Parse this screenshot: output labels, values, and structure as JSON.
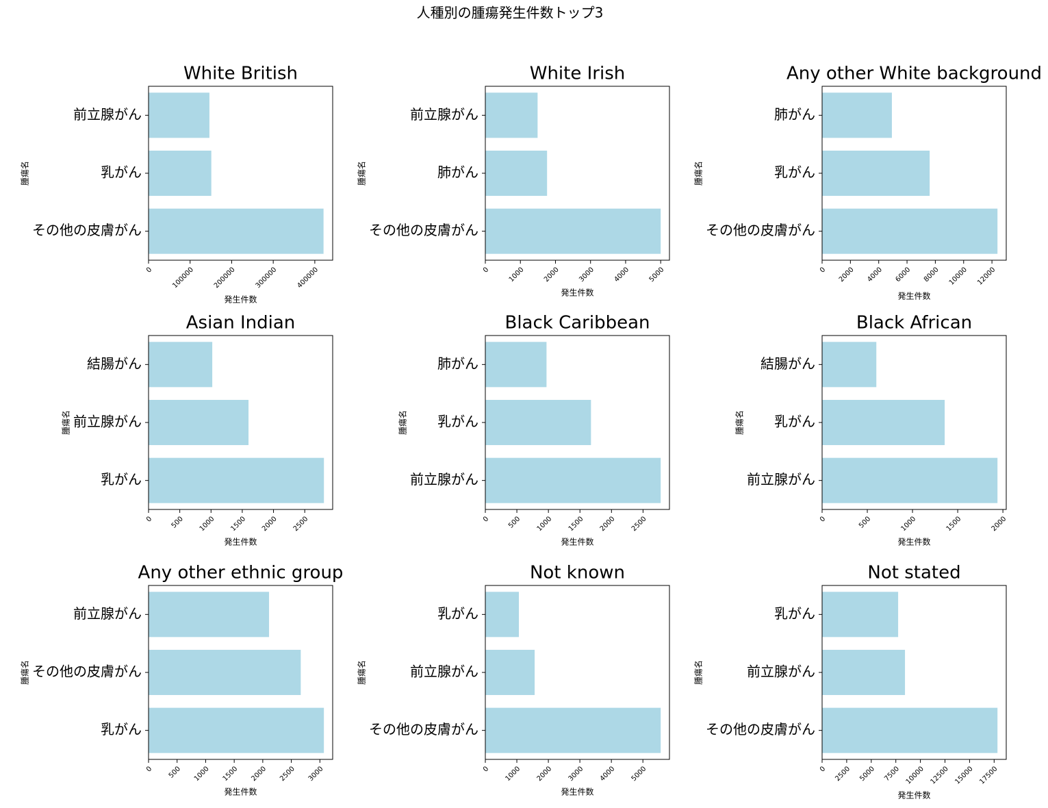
{
  "title": "人種別の腫瘍発生件数トップ3",
  "chart_data": [
    {
      "type": "bar",
      "orientation": "horizontal",
      "title": "White British",
      "xlabel": "発生件数",
      "ylabel": "腫瘍名",
      "color": "#add8e6",
      "categories": [
        "前立腺がん",
        "乳がん",
        "その他の皮膚がん"
      ],
      "values": [
        146500,
        151000,
        421000
      ],
      "xlim": [
        0,
        443000
      ],
      "xticks": [
        0,
        100000,
        200000,
        300000,
        400000
      ]
    },
    {
      "type": "bar",
      "orientation": "horizontal",
      "title": "White Irish",
      "xlabel": "発生件数",
      "ylabel": "腫瘍名",
      "color": "#add8e6",
      "categories": [
        "前立腺がん",
        "肺がん",
        "その他の皮膚がん"
      ],
      "values": [
        1490,
        1760,
        5000
      ],
      "xlim": [
        0,
        5250
      ],
      "xticks": [
        0,
        1000,
        2000,
        3000,
        4000,
        5000
      ]
    },
    {
      "type": "bar",
      "orientation": "horizontal",
      "title": "Any other White background",
      "xlabel": "発生件数",
      "ylabel": "腫瘍名",
      "color": "#add8e6",
      "categories": [
        "肺がん",
        "乳がん",
        "その他の皮膚がん"
      ],
      "values": [
        4930,
        7600,
        12390
      ],
      "xlim": [
        0,
        13010
      ],
      "xticks": [
        0,
        2000,
        4000,
        6000,
        8000,
        10000,
        12000
      ]
    },
    {
      "type": "bar",
      "orientation": "horizontal",
      "title": "Asian Indian",
      "xlabel": "発生件数",
      "ylabel": "腫瘍名",
      "color": "#add8e6",
      "categories": [
        "結腸がん",
        "前立腺がん",
        "乳がん"
      ],
      "values": [
        1020,
        1600,
        2807
      ],
      "xlim": [
        0,
        2947
      ],
      "xticks": [
        0,
        500,
        1000,
        1500,
        2000,
        2500
      ]
    },
    {
      "type": "bar",
      "orientation": "horizontal",
      "title": "Black Caribbean",
      "xlabel": "発生件数",
      "ylabel": "腫瘍名",
      "color": "#add8e6",
      "categories": [
        "肺がん",
        "乳がん",
        "前立腺がん"
      ],
      "values": [
        970,
        1675,
        2780
      ],
      "xlim": [
        0,
        2919
      ],
      "xticks": [
        0,
        500,
        1000,
        1500,
        2000,
        2500
      ]
    },
    {
      "type": "bar",
      "orientation": "horizontal",
      "title": "Black African",
      "xlabel": "発生件数",
      "ylabel": "腫瘍名",
      "color": "#add8e6",
      "categories": [
        "結腸がん",
        "乳がん",
        "前立腺がん"
      ],
      "values": [
        600,
        1356,
        1940
      ],
      "xlim": [
        0,
        2037
      ],
      "xticks": [
        0,
        500,
        1000,
        1500,
        2000
      ]
    },
    {
      "type": "bar",
      "orientation": "horizontal",
      "title": "Any other ethnic group",
      "xlabel": "発生件数",
      "ylabel": "腫瘍名",
      "color": "#add8e6",
      "categories": [
        "前立腺がん",
        "その他の皮膚がん",
        "乳がん"
      ],
      "values": [
        2110,
        2665,
        3070
      ],
      "xlim": [
        0,
        3224
      ],
      "xticks": [
        0,
        500,
        1000,
        1500,
        2000,
        2500,
        3000
      ]
    },
    {
      "type": "bar",
      "orientation": "horizontal",
      "title": "Not known",
      "xlabel": "発生件数",
      "ylabel": "腫瘍名",
      "color": "#add8e6",
      "categories": [
        "乳がん",
        "前立腺がん",
        "その他の皮膚がん"
      ],
      "values": [
        1065,
        1565,
        5565
      ],
      "xlim": [
        0,
        5843
      ],
      "xticks": [
        0,
        1000,
        2000,
        3000,
        4000,
        5000
      ]
    },
    {
      "type": "bar",
      "orientation": "horizontal",
      "title": "Not stated",
      "xlabel": "発生件数",
      "ylabel": "腫瘍名",
      "color": "#add8e6",
      "categories": [
        "乳がん",
        "前立腺がん",
        "その他の皮膚がん"
      ],
      "values": [
        7735,
        8430,
        17840
      ],
      "xlim": [
        0,
        18732
      ],
      "xticks": [
        0,
        2500,
        5000,
        7500,
        10000,
        12500,
        15000,
        17500
      ]
    }
  ]
}
